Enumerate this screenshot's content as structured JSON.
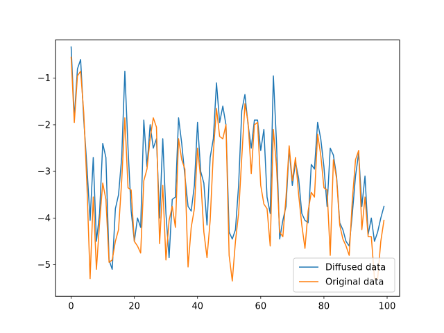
{
  "chart_data": {
    "type": "line",
    "title": "",
    "xlabel": "",
    "ylabel": "",
    "xlim": [
      -4.95,
      103.95
    ],
    "ylim": [
      -5.68,
      -0.18
    ],
    "grid": false,
    "legend_position": "lower-right",
    "x_ticks": [
      {
        "value": 0,
        "label": "0"
      },
      {
        "value": 20,
        "label": "20"
      },
      {
        "value": 40,
        "label": "40"
      },
      {
        "value": 60,
        "label": "60"
      },
      {
        "value": 80,
        "label": "80"
      },
      {
        "value": 100,
        "label": "100"
      }
    ],
    "y_ticks": [
      {
        "value": -1,
        "label": "−1"
      },
      {
        "value": -2,
        "label": "−2"
      },
      {
        "value": -3,
        "label": "−3"
      },
      {
        "value": -4,
        "label": "−4"
      },
      {
        "value": -5,
        "label": "−5"
      }
    ],
    "x": [
      0,
      1,
      2,
      3,
      4,
      5,
      6,
      7,
      8,
      9,
      10,
      11,
      12,
      13,
      14,
      15,
      16,
      17,
      18,
      19,
      20,
      21,
      22,
      23,
      24,
      25,
      26,
      27,
      28,
      29,
      30,
      31,
      32,
      33,
      34,
      35,
      36,
      37,
      38,
      39,
      40,
      41,
      42,
      43,
      44,
      45,
      46,
      47,
      48,
      49,
      50,
      51,
      52,
      53,
      54,
      55,
      56,
      57,
      58,
      59,
      60,
      61,
      62,
      63,
      64,
      65,
      66,
      67,
      68,
      69,
      70,
      71,
      72,
      73,
      74,
      75,
      76,
      77,
      78,
      79,
      80,
      81,
      82,
      83,
      84,
      85,
      86,
      87,
      88,
      89,
      90,
      91,
      92,
      93,
      94,
      95,
      96,
      97,
      98,
      99
    ],
    "series": [
      {
        "name": "Diffused data",
        "color": "#1f77b4",
        "values": [
          -0.33,
          -1.85,
          -0.8,
          -0.6,
          -1.9,
          -2.9,
          -4.05,
          -2.7,
          -4.5,
          -3.9,
          -2.4,
          -2.7,
          -4.9,
          -5.1,
          -3.8,
          -3.5,
          -2.7,
          -0.85,
          -2.5,
          -3.85,
          -4.5,
          -4.0,
          -4.2,
          -1.9,
          -2.9,
          -2.0,
          -2.5,
          -2.3,
          -4.0,
          -2.3,
          -3.9,
          -4.85,
          -3.6,
          -3.55,
          -1.85,
          -2.4,
          -3.1,
          -3.75,
          -3.85,
          -3.3,
          -1.95,
          -3.0,
          -3.25,
          -4.15,
          -2.7,
          -2.3,
          -1.1,
          -1.95,
          -1.6,
          -2.0,
          -4.3,
          -4.45,
          -4.25,
          -3.3,
          -1.7,
          -1.35,
          -2.0,
          -2.5,
          -1.9,
          -1.9,
          -2.55,
          -2.1,
          -3.55,
          -3.9,
          -0.95,
          -2.4,
          -4.45,
          -4.05,
          -3.75,
          -2.5,
          -3.3,
          -2.8,
          -3.15,
          -3.9,
          -4.05,
          -4.1,
          -2.85,
          -2.95,
          -1.95,
          -2.3,
          -2.9,
          -3.75,
          -2.5,
          -2.65,
          -3.1,
          -4.1,
          -4.25,
          -4.5,
          -4.6,
          -3.9,
          -3.1,
          -2.6,
          -3.75,
          -3.1,
          -4.35,
          -4.0,
          -4.5,
          -4.3,
          -4.0,
          -3.75
        ]
      },
      {
        "name": "Original data",
        "color": "#ff7f0e",
        "values": [
          -0.55,
          -1.95,
          -0.95,
          -0.85,
          -1.75,
          -3.3,
          -5.3,
          -3.55,
          -5.1,
          -4.1,
          -3.25,
          -3.6,
          -4.95,
          -4.9,
          -4.5,
          -4.25,
          -3.2,
          -1.85,
          -3.35,
          -3.4,
          -4.5,
          -4.6,
          -4.75,
          -3.2,
          -2.95,
          -2.3,
          -1.85,
          -2.05,
          -4.55,
          -3.3,
          -4.9,
          -4.05,
          -3.75,
          -4.2,
          -2.3,
          -2.75,
          -2.95,
          -5.05,
          -4.2,
          -3.8,
          -2.5,
          -3.15,
          -4.3,
          -4.85,
          -4.05,
          -2.6,
          -1.65,
          -2.25,
          -2.3,
          -2.0,
          -4.8,
          -5.35,
          -4.5,
          -3.9,
          -2.7,
          -1.55,
          -1.95,
          -3.05,
          -2.0,
          -1.95,
          -3.3,
          -3.7,
          -3.8,
          -4.6,
          -2.1,
          -2.9,
          -4.3,
          -4.4,
          -3.55,
          -2.45,
          -3.2,
          -2.7,
          -3.5,
          -4.15,
          -4.65,
          -3.85,
          -3.45,
          -3.55,
          -2.2,
          -2.65,
          -3.35,
          -3.4,
          -4.8,
          -2.75,
          -3.15,
          -4.15,
          -4.45,
          -4.6,
          -4.8,
          -3.6,
          -2.75,
          -2.55,
          -4.25,
          -3.55,
          -4.4,
          -4.4,
          -5.3,
          -5.3,
          -4.5,
          -4.05
        ]
      }
    ]
  }
}
